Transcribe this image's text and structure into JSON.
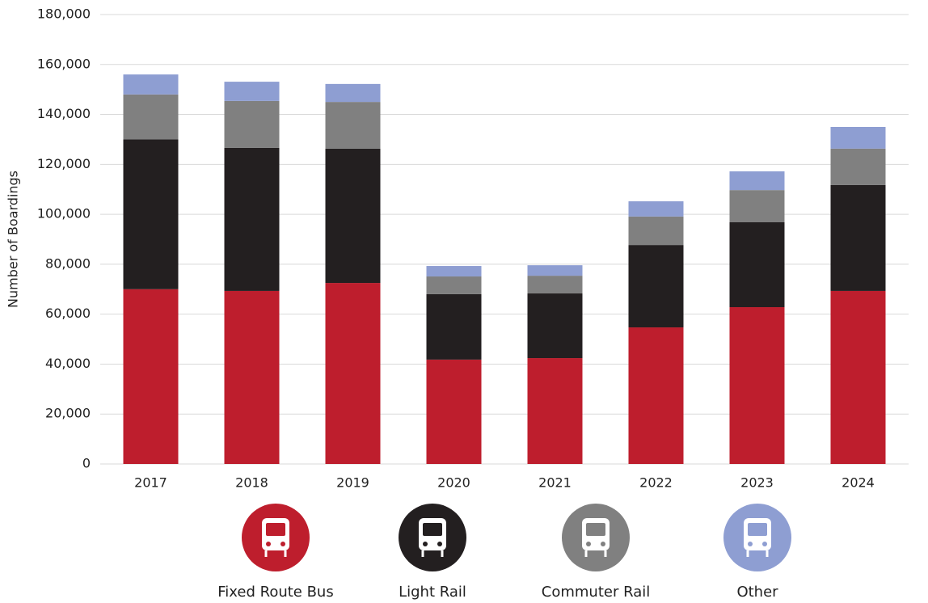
{
  "chart_data": {
    "type": "stacked-bar",
    "ylabel": "Number of Boardings",
    "categories": [
      "2017",
      "2018",
      "2019",
      "2020",
      "2021",
      "2022",
      "2023",
      "2024"
    ],
    "series": [
      {
        "name": "Fixed Route Bus",
        "color": "#be1e2d",
        "values": [
          70000,
          69300,
          72500,
          41800,
          42400,
          54700,
          62800,
          69300
        ]
      },
      {
        "name": "Light Rail",
        "color": "#231f20",
        "values": [
          60000,
          57300,
          53800,
          26200,
          25900,
          33000,
          34000,
          42400
        ]
      },
      {
        "name": "Commuter Rail",
        "color": "#808080",
        "values": [
          18000,
          18800,
          18700,
          7100,
          7100,
          11400,
          12900,
          14600
        ]
      },
      {
        "name": "Other",
        "color": "#8e9ed2",
        "values": [
          8000,
          7700,
          7200,
          4200,
          4200,
          6100,
          7500,
          8700
        ]
      }
    ],
    "ylim": [
      0,
      180000
    ],
    "yticks": [
      0,
      {
        "value": 20000,
        "label": "20,000"
      },
      {
        "value": 40000,
        "label": "40,000"
      },
      {
        "value": 60000,
        "label": "60,000"
      },
      {
        "value": 80000,
        "label": "80,000"
      },
      {
        "value": 100000,
        "label": "100,000"
      },
      {
        "value": 120000,
        "label": "120,000"
      },
      {
        "value": 140000,
        "label": "140,000"
      },
      {
        "value": 160000,
        "label": "160,000"
      },
      {
        "value": 180000,
        "label": "180,000"
      }
    ],
    "grid": true,
    "legend": "bottom"
  }
}
